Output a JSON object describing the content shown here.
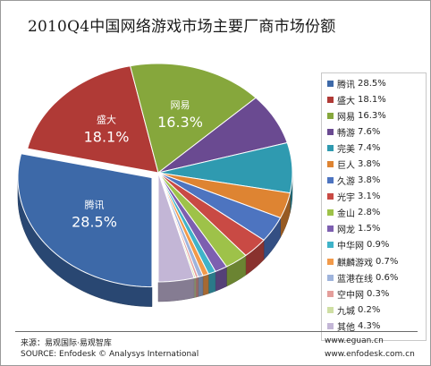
{
  "title": "2010Q4中国网络游戏市场主要厂商市场份额",
  "chart_data": {
    "type": "pie",
    "title": "2010Q4中国网络游戏市场主要厂商市场份额",
    "slices": [
      {
        "name": "腾讯",
        "value": 28.5,
        "label": "28.5%",
        "color": "#3d69a8"
      },
      {
        "name": "盛大",
        "value": 18.1,
        "label": "18.1%",
        "color": "#b03a36"
      },
      {
        "name": "网易",
        "value": 16.3,
        "label": "16.3%",
        "color": "#86a73c"
      },
      {
        "name": "畅游",
        "value": 7.6,
        "label": "7.6%",
        "color": "#6a4a91"
      },
      {
        "name": "完美",
        "value": 7.4,
        "label": "7.4%",
        "color": "#2f9ab0"
      },
      {
        "name": "巨人",
        "value": 3.8,
        "label": "3.8%",
        "color": "#de8432"
      },
      {
        "name": "久游",
        "value": 3.8,
        "label": "3.8%",
        "color": "#4d74c0"
      },
      {
        "name": "光宇",
        "value": 3.1,
        "label": "3.1%",
        "color": "#c94a44"
      },
      {
        "name": "金山",
        "value": 2.8,
        "label": "2.8%",
        "color": "#9ec249"
      },
      {
        "name": "网龙",
        "value": 1.5,
        "label": "1.5%",
        "color": "#7d5fb0"
      },
      {
        "name": "中华网",
        "value": 0.9,
        "label": "0.9%",
        "color": "#3fb3c9"
      },
      {
        "name": "麒麟游戏",
        "value": 0.7,
        "label": "0.7%",
        "color": "#f29a4a"
      },
      {
        "name": "蓝港在线",
        "value": 0.6,
        "label": "0.6%",
        "color": "#9fb4dc"
      },
      {
        "name": "空中网",
        "value": 0.3,
        "label": "0.3%",
        "color": "#e49e9b"
      },
      {
        "name": "九城",
        "value": 0.2,
        "label": "0.2%",
        "color": "#cfdfa4"
      },
      {
        "name": "其他",
        "value": 4.3,
        "label": "4.3%",
        "color": "#c3b6d6"
      }
    ],
    "inner_labels": [
      "腾讯",
      "盛大",
      "网易"
    ],
    "legend_position": "right"
  },
  "footer": {
    "source_cn": "来源：易观国际·易观智库",
    "source_en": "SOURCE: Enfodesk © Analysys International",
    "website1": "www.eguan.cn",
    "website2": "www.enfodesk.com.cn"
  }
}
